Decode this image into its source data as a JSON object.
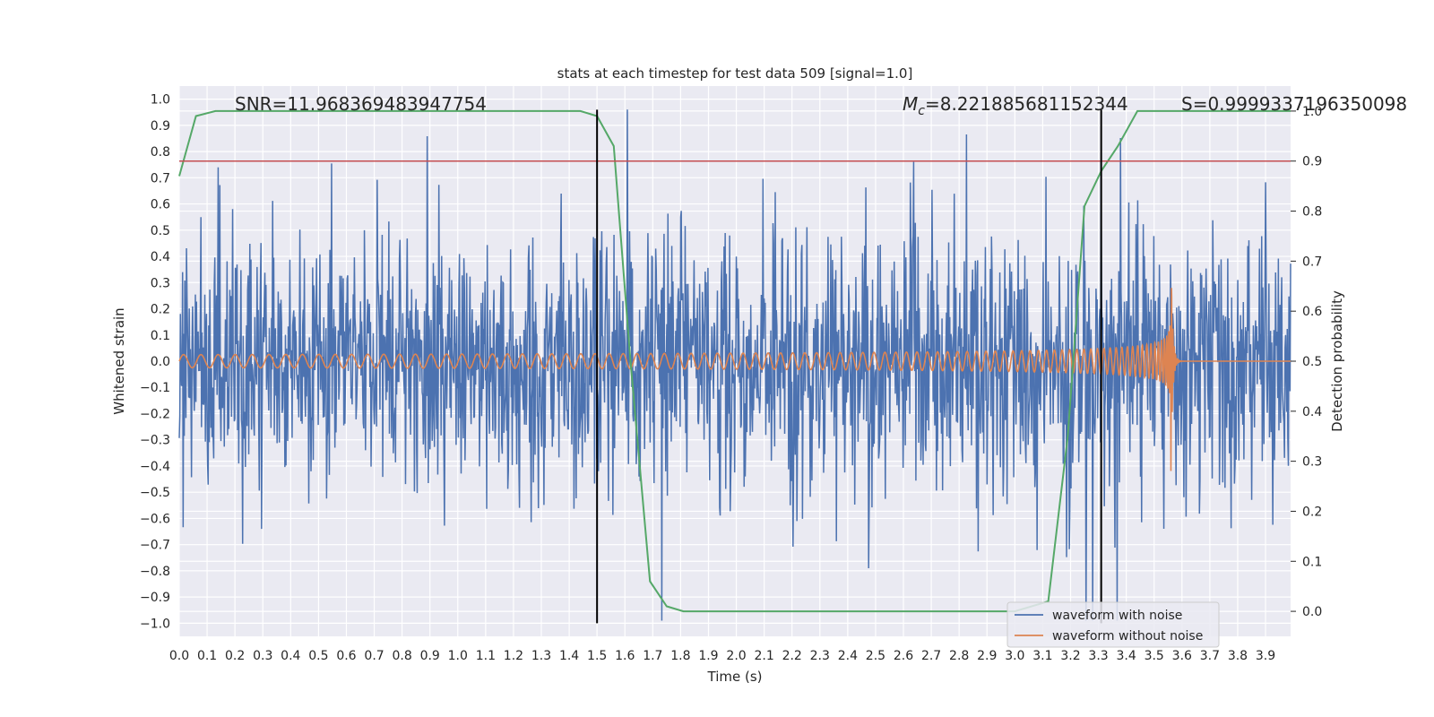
{
  "chart_data": {
    "type": "line",
    "title": "stats at each timestep for test data 509 [signal=1.0]",
    "xlabel": "Time (s)",
    "ylabel": "Whitened strain",
    "y2label": "Detection probability",
    "xlim": [
      0.0,
      3.99
    ],
    "ylim": [
      -1.05,
      1.05
    ],
    "y2lim": [
      -0.05,
      1.05
    ],
    "xticks": [
      "0.0",
      "0.1",
      "0.2",
      "0.3",
      "0.4",
      "0.5",
      "0.6",
      "0.7",
      "0.8",
      "0.9",
      "1.0",
      "1.1",
      "1.2",
      "1.3",
      "1.4",
      "1.5",
      "1.6",
      "1.7",
      "1.8",
      "1.9",
      "2.0",
      "2.1",
      "2.2",
      "2.3",
      "2.4",
      "2.5",
      "2.6",
      "2.7",
      "2.8",
      "2.9",
      "3.0",
      "3.1",
      "3.2",
      "3.3",
      "3.4",
      "3.5",
      "3.6",
      "3.7",
      "3.8",
      "3.9"
    ],
    "yticks": [
      "1.0",
      "0.9",
      "0.8",
      "0.7",
      "0.6",
      "0.5",
      "0.4",
      "0.3",
      "0.2",
      "0.1",
      "0.0",
      "−0.1",
      "−0.2",
      "−0.3",
      "−0.4",
      "−0.5",
      "−0.6",
      "−0.7",
      "−0.8",
      "−0.9",
      "−1.0"
    ],
    "y2ticks": [
      "1.0",
      "0.9",
      "0.8",
      "0.7",
      "0.6",
      "0.5",
      "0.4",
      "0.3",
      "0.2",
      "0.1",
      "0.0"
    ],
    "grid": true,
    "legend_position": "bottom-right",
    "annotations": {
      "snr": "SNR=11.968369483947754",
      "mc_symbol": "M",
      "mc_subscript": "c",
      "mc_value": "=8.221885681152344",
      "s": "S=0.9999337196350098"
    },
    "vertical_lines": [
      1.5,
      3.31
    ],
    "threshold": {
      "value": 0.9,
      "color": "#c44e52"
    },
    "series": [
      {
        "name": "waveform with noise",
        "color": "#4c72b0",
        "kind": "noise",
        "amplitude_typical": 0.3,
        "amplitude_peak": 0.95,
        "x_range": [
          0.0,
          3.99
        ]
      },
      {
        "name": "waveform without noise",
        "color": "#dd8452",
        "kind": "chirp",
        "merger_time": 3.56,
        "peak_amplitude": 0.45,
        "x_range": [
          0.0,
          3.99
        ]
      },
      {
        "name": "",
        "color": "#55a868",
        "kind": "probability",
        "axis": "right",
        "x": [
          0.0,
          0.06,
          0.13,
          0.5,
          1.0,
          1.44,
          1.5,
          1.56,
          1.62,
          1.69,
          1.75,
          1.81,
          2.0,
          2.5,
          3.0,
          3.12,
          3.19,
          3.25,
          3.31,
          3.37,
          3.44,
          3.5,
          3.56,
          3.62,
          3.99
        ],
        "y": [
          0.87,
          0.99,
          1.0,
          1.0,
          1.0,
          1.0,
          0.99,
          0.93,
          0.5,
          0.06,
          0.01,
          0.0,
          0.0,
          0.0,
          0.0,
          0.02,
          0.35,
          0.81,
          0.88,
          0.93,
          1.0,
          1.0,
          1.0,
          1.0,
          1.0
        ]
      }
    ]
  }
}
